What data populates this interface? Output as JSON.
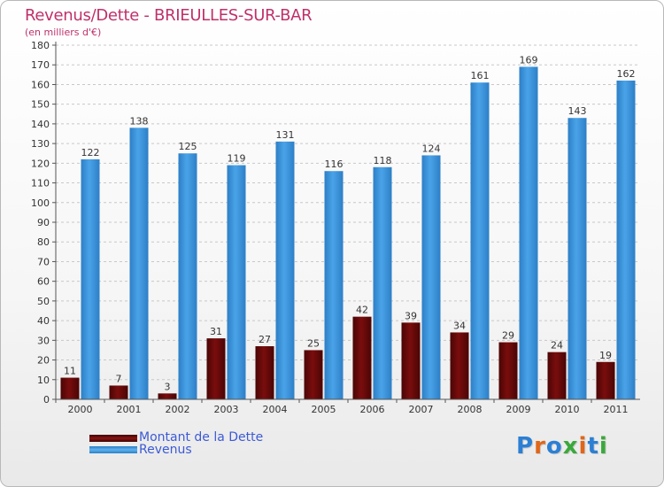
{
  "title": "Revenus/Dette - BRIEULLES-SUR-BAR",
  "subtitle": "(en milliers d'€)",
  "logo_text": "Proxiti",
  "colors": {
    "debt": "#7a0d0d",
    "revenue": "#4aa3e8",
    "title": "#c0306a",
    "legend_text": "#3c5ad6",
    "logo": [
      "#2b7fd4",
      "#e0661a",
      "#2b7fd4",
      "#3aa93a",
      "#e0661a",
      "#2b7fd4",
      "#3aa93a"
    ]
  },
  "chart_data": {
    "type": "bar",
    "categories": [
      "2000",
      "2001",
      "2002",
      "2003",
      "2004",
      "2005",
      "2006",
      "2007",
      "2008",
      "2009",
      "2010",
      "2011"
    ],
    "series": [
      {
        "name": "Montant de la Dette",
        "values": [
          11,
          7,
          3,
          31,
          27,
          25,
          42,
          39,
          34,
          29,
          24,
          19
        ]
      },
      {
        "name": "Revenus",
        "values": [
          122,
          138,
          125,
          119,
          131,
          116,
          118,
          124,
          161,
          169,
          143,
          162
        ]
      }
    ],
    "ylim": [
      0,
      180
    ],
    "yticks": [
      0,
      10,
      20,
      30,
      40,
      50,
      60,
      70,
      80,
      90,
      100,
      110,
      120,
      130,
      140,
      150,
      160,
      170,
      180
    ],
    "grid": true,
    "legend_position": "bottom-left"
  }
}
